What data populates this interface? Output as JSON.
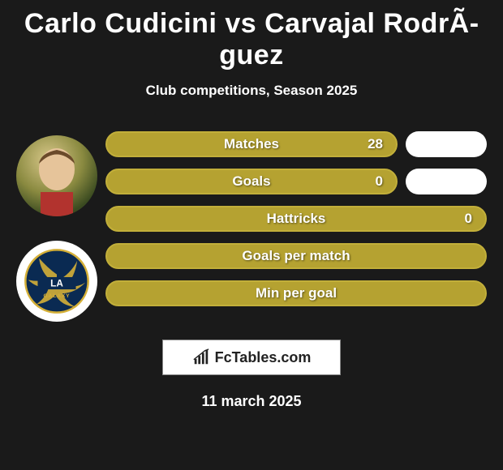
{
  "title": "Carlo Cudicini vs Carvajal RodrÃ­guez",
  "subtitle": "Club competitions, Season 2025",
  "date": "11 march 2025",
  "brand": "FcTables.com",
  "colors": {
    "accent": "#b5a231",
    "accent_border": "#c2af3a",
    "side_pill": "#ffffff",
    "background": "#1a1a1a"
  },
  "player_left": {
    "has_side_pills_for_rows": [
      0,
      1
    ]
  },
  "stats": [
    {
      "label": "Matches",
      "value": "28",
      "has_side": true
    },
    {
      "label": "Goals",
      "value": "0",
      "has_side": true
    },
    {
      "label": "Hattricks",
      "value": "0",
      "has_side": false
    },
    {
      "label": "Goals per match",
      "value": "",
      "has_side": false
    },
    {
      "label": "Min per goal",
      "value": "",
      "has_side": false
    }
  ]
}
